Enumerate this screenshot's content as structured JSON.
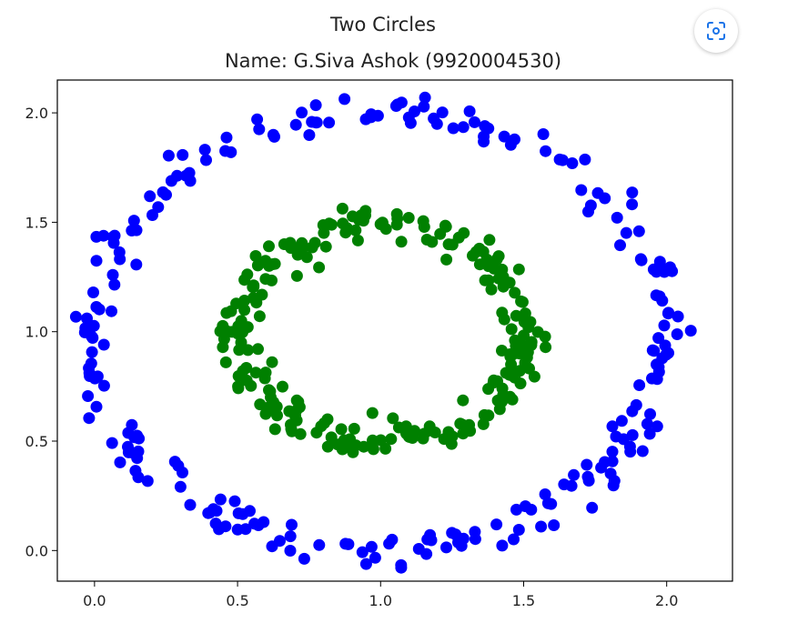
{
  "chart_data": {
    "type": "scatter",
    "title": "Two Circles",
    "subtitle": "Name: G.Siva Ashok (9920004530)",
    "xlabel": "",
    "ylabel": "",
    "xlim": [
      -0.13,
      2.23
    ],
    "ylim": [
      -0.14,
      2.15
    ],
    "x_ticks": [
      0.0,
      0.5,
      1.0,
      1.5,
      2.0
    ],
    "y_ticks": [
      0.0,
      0.5,
      1.0,
      1.5,
      2.0
    ],
    "x_tick_labels": [
      "0.0",
      "0.5",
      "1.0",
      "1.5",
      "2.0"
    ],
    "y_tick_labels": [
      "0.0",
      "0.5",
      "1.0",
      "1.5",
      "2.0"
    ],
    "grid": false,
    "legend": "none",
    "series": [
      {
        "color": "#0000ff",
        "shape": "ring",
        "center": [
          1.0,
          1.0
        ],
        "radius": 1.0,
        "noise": 0.04,
        "count": 250
      },
      {
        "color": "#008000",
        "shape": "ring",
        "center": [
          1.0,
          1.0
        ],
        "radius": 0.5,
        "noise": 0.04,
        "count": 250
      }
    ]
  },
  "toolbar": {
    "scan_icon": "scan-icon"
  }
}
